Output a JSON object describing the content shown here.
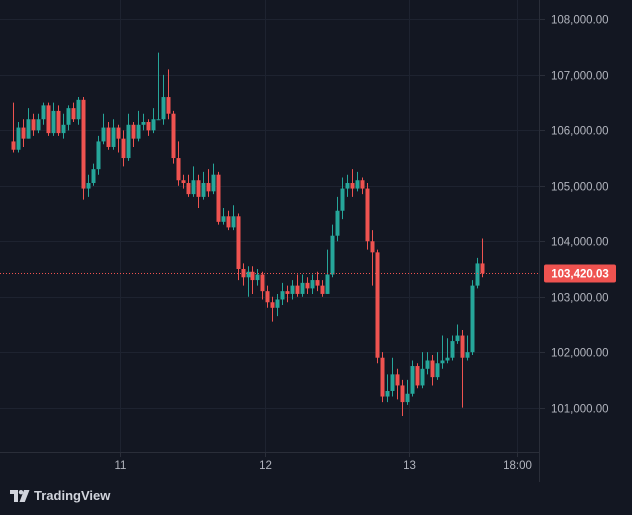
{
  "branding": {
    "name": "TradingView"
  },
  "colors": {
    "up": "#26a69a",
    "down": "#ef5350",
    "background": "#131722",
    "grid": "#1e2330",
    "text": "#b2b5be",
    "last_price_tag": "#ef5350"
  },
  "chart_data": {
    "type": "candlestick",
    "title": "",
    "xlabel": "",
    "ylabel": "",
    "y_ticks": [
      "108,000.00",
      "107,000.00",
      "106,000.00",
      "105,000.00",
      "104,000.00",
      "103,000.00",
      "102,000.00",
      "101,000.00"
    ],
    "x_ticks": [
      "11",
      "12",
      "13",
      "18:00"
    ],
    "ylim": [
      100200,
      108350
    ],
    "last_price": 103420.03,
    "last_price_label": "103,420.03",
    "grid": true,
    "candles": [
      [
        105800,
        105650,
        106500,
        105600
      ],
      [
        105650,
        106050,
        106150,
        105600
      ],
      [
        106050,
        105850,
        106200,
        105700
      ],
      [
        105850,
        106200,
        106400,
        105850
      ],
      [
        106200,
        106000,
        106300,
        105900
      ],
      [
        106000,
        106200,
        106300,
        105950
      ],
      [
        106200,
        106450,
        106500,
        106100
      ],
      [
        106450,
        105950,
        106500,
        105900
      ],
      [
        105950,
        106350,
        106500,
        105900
      ],
      [
        106350,
        105950,
        106450,
        105900
      ],
      [
        105950,
        106100,
        106300,
        105850
      ],
      [
        106100,
        106400,
        106450,
        106000
      ],
      [
        106400,
        106200,
        106500,
        106150
      ],
      [
        106200,
        106550,
        106600,
        106100
      ],
      [
        106550,
        104950,
        106600,
        104750
      ],
      [
        104950,
        105050,
        105200,
        104800
      ],
      [
        105050,
        105300,
        105400,
        105000
      ],
      [
        105300,
        105800,
        105900,
        105200
      ],
      [
        105800,
        106050,
        106300,
        105750
      ],
      [
        106050,
        105700,
        106150,
        105650
      ],
      [
        105700,
        106050,
        106200,
        105650
      ],
      [
        106050,
        105850,
        106100,
        105600
      ],
      [
        105850,
        105500,
        106000,
        105350
      ],
      [
        105500,
        106100,
        106300,
        105450
      ],
      [
        106100,
        105850,
        106150,
        105700
      ],
      [
        105850,
        106100,
        106350,
        105800
      ],
      [
        106100,
        106150,
        106300,
        106000
      ],
      [
        106150,
        106000,
        106200,
        105900
      ],
      [
        106000,
        106200,
        106400,
        105950
      ],
      [
        106200,
        106200,
        107400,
        106200
      ],
      [
        106200,
        106600,
        107000,
        106100
      ],
      [
        106600,
        106300,
        107100,
        106200
      ],
      [
        106300,
        105500,
        106350,
        105400
      ],
      [
        105500,
        105100,
        105800,
        105000
      ],
      [
        105100,
        105050,
        105200,
        104950
      ],
      [
        105050,
        104850,
        105200,
        104800
      ],
      [
        104850,
        105100,
        105350,
        104800
      ],
      [
        105100,
        104800,
        105200,
        104600
      ],
      [
        104800,
        105050,
        105250,
        104750
      ],
      [
        105050,
        104900,
        105300,
        104800
      ],
      [
        104900,
        105200,
        105400,
        104850
      ],
      [
        105200,
        104350,
        105250,
        104300
      ],
      [
        104350,
        104450,
        104600,
        104300
      ],
      [
        104450,
        104250,
        104550,
        104200
      ],
      [
        104250,
        104450,
        104650,
        104200
      ],
      [
        104450,
        103500,
        104500,
        103300
      ],
      [
        103500,
        103350,
        103600,
        103200
      ],
      [
        103350,
        103450,
        103550,
        103000
      ],
      [
        103450,
        103300,
        103550,
        103050
      ],
      [
        103300,
        103400,
        103500,
        103200
      ],
      [
        103400,
        103100,
        103450,
        102950
      ],
      [
        103100,
        102900,
        103200,
        102800
      ],
      [
        102900,
        102800,
        103000,
        102550
      ],
      [
        102800,
        102950,
        103050,
        102650
      ],
      [
        102950,
        103100,
        103250,
        102850
      ],
      [
        103100,
        103050,
        103200,
        102900
      ],
      [
        103050,
        103200,
        103300,
        102950
      ],
      [
        103200,
        103050,
        103400,
        103000
      ],
      [
        103050,
        103250,
        103400,
        103000
      ],
      [
        103250,
        103150,
        103350,
        103050
      ],
      [
        103150,
        103300,
        103400,
        103050
      ],
      [
        103300,
        103200,
        103450,
        103100
      ],
      [
        103200,
        103050,
        103300,
        103000
      ],
      [
        103050,
        103400,
        103850,
        103050
      ],
      [
        103400,
        104100,
        104300,
        103350
      ],
      [
        104100,
        104550,
        104800,
        104000
      ],
      [
        104550,
        104950,
        105150,
        104400
      ],
      [
        104950,
        105050,
        105200,
        104800
      ],
      [
        105050,
        104950,
        105300,
        104800
      ],
      [
        104950,
        105100,
        105250,
        104900
      ],
      [
        105100,
        104950,
        105150,
        104850
      ],
      [
        104950,
        104000,
        105050,
        103850
      ],
      [
        104000,
        103800,
        104200,
        103200
      ],
      [
        103800,
        101900,
        103850,
        101800
      ],
      [
        101900,
        101200,
        102000,
        101100
      ],
      [
        101200,
        101300,
        101600,
        101100
      ],
      [
        101300,
        101600,
        101900,
        101200
      ],
      [
        101600,
        101400,
        101700,
        101150
      ],
      [
        101400,
        101100,
        101500,
        100850
      ],
      [
        101100,
        101250,
        101500,
        101050
      ],
      [
        101250,
        101750,
        101850,
        101200
      ],
      [
        101750,
        101400,
        101800,
        101350
      ],
      [
        101400,
        101700,
        102000,
        101350
      ],
      [
        101700,
        101850,
        102000,
        101600
      ],
      [
        101850,
        101550,
        101950,
        101400
      ],
      [
        101550,
        101800,
        102000,
        101500
      ],
      [
        101800,
        101850,
        102300,
        101700
      ],
      [
        101850,
        101900,
        102250,
        101800
      ],
      [
        101900,
        102200,
        102300,
        101850
      ],
      [
        102200,
        102300,
        102500,
        102150
      ],
      [
        102300,
        101900,
        102400,
        101000
      ],
      [
        101900,
        102000,
        102300,
        101850
      ],
      [
        102000,
        103200,
        103300,
        101950
      ],
      [
        103200,
        103600,
        103700,
        103150
      ],
      [
        103600,
        103420,
        104050,
        103350
      ]
    ]
  }
}
